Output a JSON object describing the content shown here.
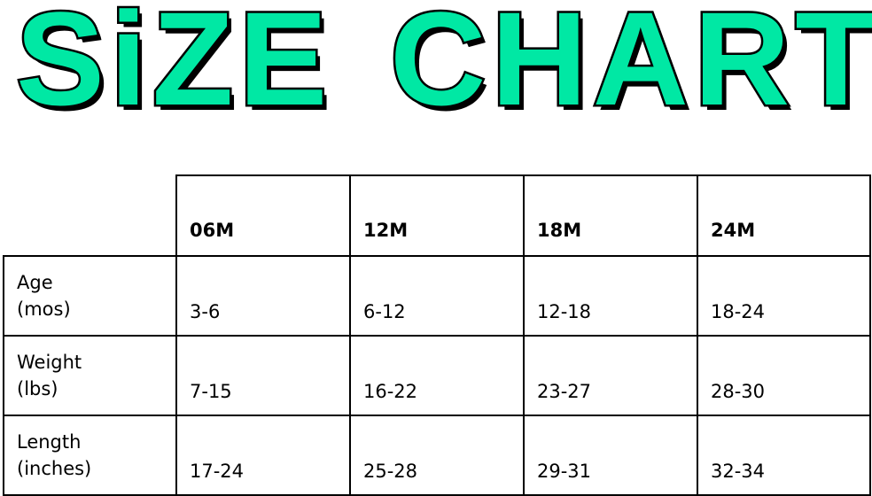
{
  "title": {
    "word1": "SiZE",
    "word2": "CHART",
    "fill_color": "#00E8A4",
    "outline_color": "#000000"
  },
  "table": {
    "columns": [
      "06M",
      "12M",
      "18M",
      "24M"
    ],
    "rows": [
      {
        "label_line1": "Age",
        "label_line2": "(mos)",
        "values": [
          "3-6",
          "6-12",
          "12-18",
          "18-24"
        ]
      },
      {
        "label_line1": "Weight",
        "label_line2": "(lbs)",
        "values": [
          "7-15",
          "16-22",
          "23-27",
          "28-30"
        ]
      },
      {
        "label_line1": "Length",
        "label_line2": "(inches)",
        "values": [
          "17-24",
          "25-28",
          "29-31",
          "32-34"
        ]
      }
    ]
  }
}
